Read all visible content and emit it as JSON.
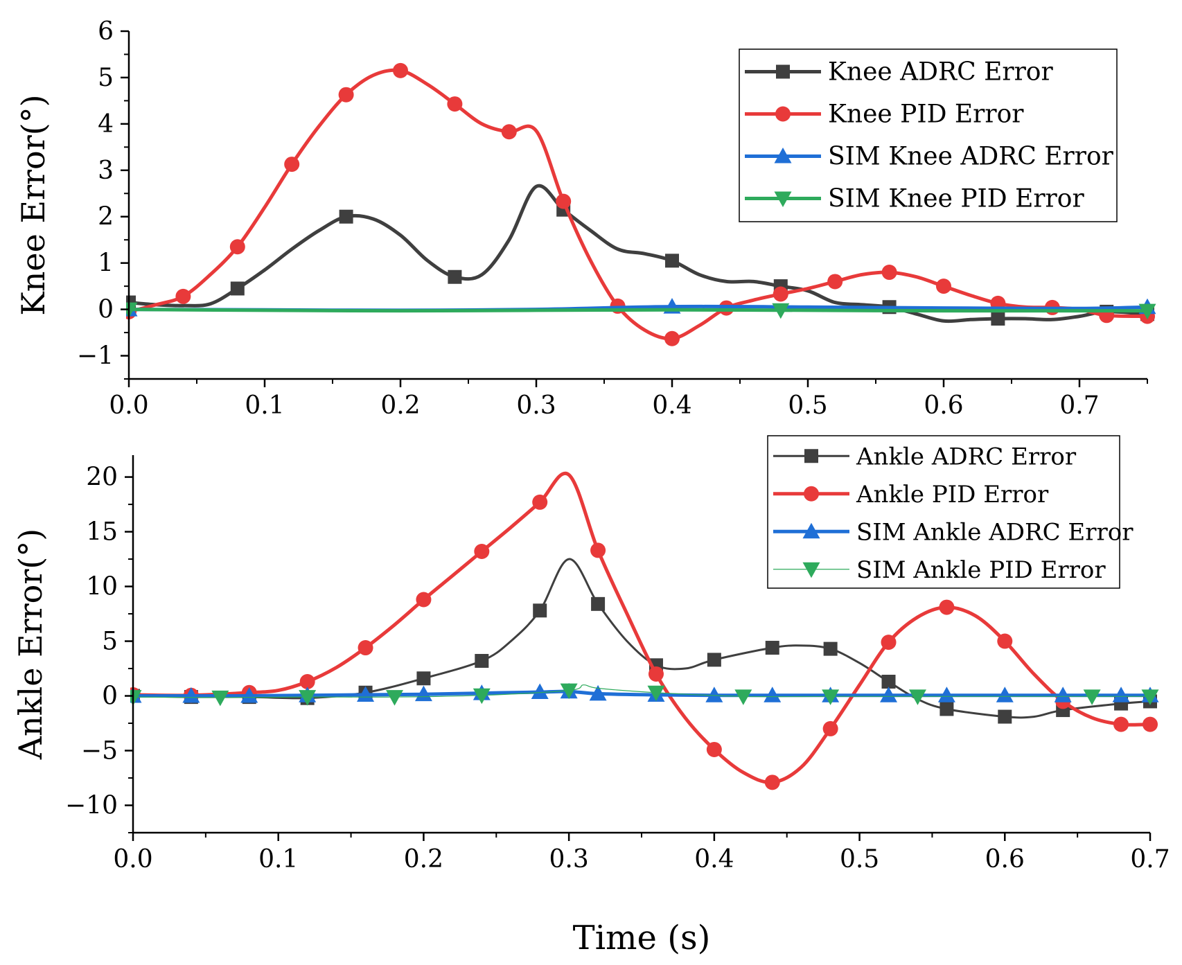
{
  "figure": {
    "xlabel": "Time (s)"
  },
  "chart_data": [
    {
      "type": "line",
      "title": "",
      "xlabel": "",
      "ylabel": "Knee Error(°)",
      "xlim": [
        0,
        0.75
      ],
      "ylim": [
        -1.5,
        6
      ],
      "xticks": [
        0.0,
        0.1,
        0.2,
        0.3,
        0.4,
        0.5,
        0.6,
        0.7
      ],
      "xtick_labels": [
        "0.0",
        "0.1",
        "0.2",
        "0.3",
        "0.4",
        "0.5",
        "0.6",
        "0.7"
      ],
      "yticks": [
        -1,
        0,
        1,
        2,
        3,
        4,
        5,
        6
      ],
      "ytick_labels": [
        "−1",
        "0",
        "1",
        "2",
        "3",
        "4",
        "5",
        "6"
      ],
      "grid": false,
      "legend_position": "top-right",
      "series": [
        {
          "name": "Knee ADRC Error",
          "color": "#3f3f3f",
          "marker": "square",
          "x": [
            0,
            0.02,
            0.04,
            0.06,
            0.08,
            0.1,
            0.12,
            0.14,
            0.16,
            0.18,
            0.2,
            0.22,
            0.24,
            0.26,
            0.28,
            0.3,
            0.32,
            0.34,
            0.36,
            0.38,
            0.4,
            0.42,
            0.44,
            0.46,
            0.48,
            0.5,
            0.52,
            0.54,
            0.56,
            0.58,
            0.6,
            0.62,
            0.64,
            0.66,
            0.68,
            0.7,
            0.72,
            0.75
          ],
          "y": [
            0.15,
            0.1,
            0.08,
            0.12,
            0.45,
            0.85,
            1.3,
            1.7,
            2.0,
            1.95,
            1.6,
            1.05,
            0.7,
            0.75,
            1.5,
            2.65,
            2.15,
            1.7,
            1.3,
            1.2,
            1.05,
            0.75,
            0.6,
            0.6,
            0.5,
            0.4,
            0.15,
            0.1,
            0.05,
            -0.1,
            -0.25,
            -0.22,
            -0.2,
            -0.2,
            -0.22,
            -0.15,
            -0.05,
            -0.1
          ],
          "marker_x": [
            0,
            0.08,
            0.16,
            0.24,
            0.32,
            0.4,
            0.48,
            0.56,
            0.64,
            0.72,
            0.75
          ]
        },
        {
          "name": "Knee PID Error",
          "color": "#e83a3a",
          "marker": "circle",
          "x": [
            0,
            0.02,
            0.04,
            0.06,
            0.08,
            0.1,
            0.12,
            0.14,
            0.16,
            0.18,
            0.2,
            0.22,
            0.24,
            0.26,
            0.28,
            0.3,
            0.32,
            0.34,
            0.36,
            0.38,
            0.4,
            0.42,
            0.44,
            0.46,
            0.48,
            0.5,
            0.52,
            0.54,
            0.56,
            0.58,
            0.6,
            0.62,
            0.64,
            0.66,
            0.68,
            0.7,
            0.72,
            0.75
          ],
          "y": [
            -0.05,
            0.1,
            0.28,
            0.75,
            1.35,
            2.2,
            3.13,
            3.95,
            4.63,
            5.05,
            5.15,
            4.85,
            4.43,
            4.0,
            3.83,
            3.85,
            2.33,
            1.05,
            0.07,
            -0.45,
            -0.63,
            -0.35,
            0.03,
            0.2,
            0.33,
            0.45,
            0.6,
            0.75,
            0.8,
            0.7,
            0.5,
            0.3,
            0.13,
            0.05,
            0.04,
            0.0,
            -0.13,
            -0.15
          ],
          "marker_x": [
            0,
            0.04,
            0.08,
            0.12,
            0.16,
            0.2,
            0.24,
            0.28,
            0.32,
            0.36,
            0.4,
            0.44,
            0.48,
            0.52,
            0.56,
            0.6,
            0.64,
            0.68,
            0.72,
            0.75
          ]
        },
        {
          "name": "SIM Knee ADRC Error",
          "color": "#1f6fd6",
          "marker": "triangle-up",
          "x": [
            0,
            0.1,
            0.2,
            0.3,
            0.4,
            0.5,
            0.6,
            0.7,
            0.75
          ],
          "y": [
            0.0,
            -0.01,
            -0.02,
            0.0,
            0.06,
            0.05,
            0.03,
            0.02,
            0.05
          ],
          "marker_x": [
            0,
            0.4,
            0.75
          ]
        },
        {
          "name": "SIM Knee PID Error",
          "color": "#2eaa5c",
          "marker": "triangle-down",
          "x": [
            0,
            0.1,
            0.2,
            0.3,
            0.4,
            0.5,
            0.6,
            0.7,
            0.75
          ],
          "y": [
            0.0,
            -0.02,
            -0.03,
            -0.02,
            -0.01,
            -0.02,
            -0.03,
            -0.03,
            -0.03
          ],
          "marker_x": [
            0,
            0.48,
            0.75
          ]
        }
      ]
    },
    {
      "type": "line",
      "title": "",
      "xlabel": "Time (s)",
      "ylabel": "Ankle Error(°)",
      "xlim": [
        0,
        0.7
      ],
      "ylim": [
        -12.5,
        22
      ],
      "xticks": [
        0.0,
        0.1,
        0.2,
        0.3,
        0.4,
        0.5,
        0.6,
        0.7
      ],
      "xtick_labels": [
        "0.0",
        "0.1",
        "0.2",
        "0.3",
        "0.4",
        "0.5",
        "0.6",
        "0.7"
      ],
      "yticks": [
        -10,
        -5,
        0,
        5,
        10,
        15,
        20
      ],
      "ytick_labels": [
        "−10",
        "−5",
        "0",
        "5",
        "10",
        "15",
        "20"
      ],
      "grid": false,
      "legend_position": "top-right",
      "series": [
        {
          "name": "Ankle ADRC Error",
          "color": "#3f3f3f",
          "marker": "square",
          "x": [
            0,
            0.04,
            0.08,
            0.12,
            0.16,
            0.2,
            0.24,
            0.26,
            0.28,
            0.3,
            0.32,
            0.34,
            0.36,
            0.38,
            0.4,
            0.44,
            0.46,
            0.48,
            0.5,
            0.52,
            0.54,
            0.56,
            0.6,
            0.62,
            0.64,
            0.68,
            0.7
          ],
          "y": [
            0.0,
            -0.1,
            -0.1,
            -0.2,
            0.3,
            1.6,
            3.2,
            5.0,
            7.8,
            12.5,
            8.4,
            5.0,
            2.8,
            2.5,
            3.3,
            4.4,
            4.6,
            4.3,
            3.0,
            1.3,
            -0.3,
            -1.2,
            -1.9,
            -1.9,
            -1.3,
            -0.7,
            -0.5
          ],
          "marker_x": [
            0,
            0.04,
            0.08,
            0.12,
            0.16,
            0.2,
            0.24,
            0.28,
            0.32,
            0.36,
            0.4,
            0.44,
            0.48,
            0.52,
            0.56,
            0.6,
            0.64,
            0.68,
            0.7
          ]
        },
        {
          "name": "Ankle PID Error",
          "color": "#e83a3a",
          "marker": "circle",
          "x": [
            0,
            0.04,
            0.08,
            0.1,
            0.12,
            0.14,
            0.16,
            0.18,
            0.2,
            0.22,
            0.24,
            0.26,
            0.28,
            0.3,
            0.32,
            0.34,
            0.36,
            0.38,
            0.4,
            0.42,
            0.44,
            0.46,
            0.48,
            0.5,
            0.52,
            0.54,
            0.56,
            0.58,
            0.6,
            0.62,
            0.64,
            0.66,
            0.68,
            0.7
          ],
          "y": [
            0.1,
            0.05,
            0.3,
            0.5,
            1.3,
            2.6,
            4.4,
            6.5,
            8.8,
            11.0,
            13.2,
            15.4,
            17.7,
            20.2,
            13.3,
            7.5,
            2.0,
            -2.0,
            -4.9,
            -7.0,
            -7.9,
            -6.5,
            -3.0,
            1.0,
            4.9,
            7.2,
            8.1,
            7.3,
            5.0,
            2.0,
            -0.5,
            -2.0,
            -2.6,
            -2.6
          ],
          "marker_x": [
            0,
            0.04,
            0.08,
            0.12,
            0.16,
            0.2,
            0.24,
            0.28,
            0.32,
            0.36,
            0.4,
            0.44,
            0.48,
            0.52,
            0.56,
            0.6,
            0.64,
            0.68,
            0.7
          ]
        },
        {
          "name": "SIM Ankle ADRC Error",
          "color": "#1f6fd6",
          "marker": "triangle-up",
          "x": [
            0,
            0.04,
            0.08,
            0.12,
            0.16,
            0.2,
            0.24,
            0.28,
            0.3,
            0.32,
            0.36,
            0.4,
            0.44,
            0.48,
            0.52,
            0.56,
            0.6,
            0.64,
            0.68,
            0.7
          ],
          "y": [
            0.0,
            0.0,
            0.0,
            0.05,
            0.1,
            0.15,
            0.25,
            0.35,
            0.4,
            0.2,
            0.1,
            0.05,
            0.05,
            0.05,
            0.05,
            0.05,
            0.05,
            0.05,
            0.05,
            0.05
          ],
          "marker_x": [
            0,
            0.04,
            0.08,
            0.12,
            0.16,
            0.2,
            0.24,
            0.28,
            0.3,
            0.32,
            0.36,
            0.4,
            0.44,
            0.48,
            0.52,
            0.56,
            0.6,
            0.64,
            0.68,
            0.7
          ]
        },
        {
          "name": "SIM Ankle PID Error",
          "color": "#2eaa5c",
          "marker": "triangle-down",
          "x": [
            0,
            0.06,
            0.12,
            0.18,
            0.24,
            0.3,
            0.31,
            0.32,
            0.36,
            0.42,
            0.48,
            0.54,
            0.6,
            0.66,
            0.7
          ],
          "y": [
            -0.1,
            -0.15,
            -0.1,
            -0.1,
            0.05,
            0.5,
            1.0,
            0.7,
            0.3,
            -0.05,
            -0.05,
            -0.05,
            -0.05,
            -0.05,
            -0.05
          ],
          "marker_x": [
            0,
            0.06,
            0.12,
            0.18,
            0.24,
            0.3,
            0.36,
            0.42,
            0.48,
            0.54,
            0.66,
            0.7
          ]
        }
      ]
    }
  ]
}
